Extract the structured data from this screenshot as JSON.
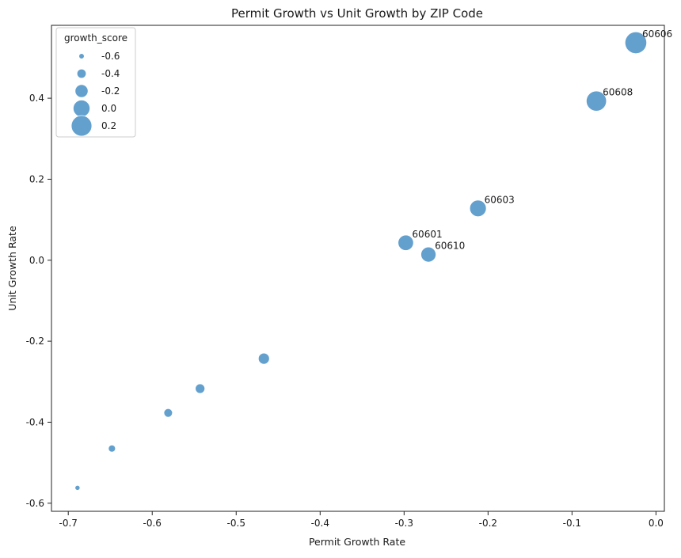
{
  "chart_data": {
    "type": "scatter",
    "title": "Permit Growth vs Unit Growth by ZIP Code",
    "xlabel": "Permit Growth Rate",
    "ylabel": "Unit Growth Rate",
    "xlim": [
      -0.72,
      0.01
    ],
    "ylim": [
      -0.62,
      0.58
    ],
    "xticks": [
      -0.7,
      -0.6,
      -0.5,
      -0.4,
      -0.3,
      -0.2,
      -0.1,
      0.0
    ],
    "xtick_labels": [
      "-0.7",
      "-0.6",
      "-0.5",
      "-0.4",
      "-0.3",
      "-0.2",
      "-0.1",
      "0.0"
    ],
    "yticks": [
      -0.6,
      -0.4,
      -0.2,
      0.0,
      0.2,
      0.4
    ],
    "ytick_labels": [
      "-0.6",
      "-0.4",
      "-0.2",
      "0.0",
      "0.2",
      "0.4"
    ],
    "grid": false,
    "point_color": "#5b9bcb",
    "legend": {
      "title": "growth_score",
      "placement": "top-left",
      "entries": [
        {
          "label": "-0.6",
          "value": -0.6
        },
        {
          "label": "-0.4",
          "value": -0.4
        },
        {
          "label": "-0.2",
          "value": -0.2
        },
        {
          "label": "0.0",
          "value": 0.0
        },
        {
          "label": "0.2",
          "value": 0.2
        }
      ]
    },
    "points": [
      {
        "x": -0.689,
        "y": -0.562,
        "size_value": -0.62,
        "label": ""
      },
      {
        "x": -0.648,
        "y": -0.465,
        "size_value": -0.51,
        "label": ""
      },
      {
        "x": -0.581,
        "y": -0.377,
        "size_value": -0.43,
        "label": ""
      },
      {
        "x": -0.543,
        "y": -0.317,
        "size_value": -0.38,
        "label": ""
      },
      {
        "x": -0.467,
        "y": -0.243,
        "size_value": -0.3,
        "label": ""
      },
      {
        "x": -0.298,
        "y": 0.043,
        "size_value": -0.07,
        "label": "60601"
      },
      {
        "x": -0.271,
        "y": 0.014,
        "size_value": -0.09,
        "label": "60610"
      },
      {
        "x": -0.212,
        "y": 0.128,
        "size_value": -0.01,
        "label": "60603"
      },
      {
        "x": -0.071,
        "y": 0.393,
        "size_value": 0.18,
        "label": "60608"
      },
      {
        "x": -0.024,
        "y": 0.537,
        "size_value": 0.26,
        "label": "60606"
      }
    ]
  }
}
